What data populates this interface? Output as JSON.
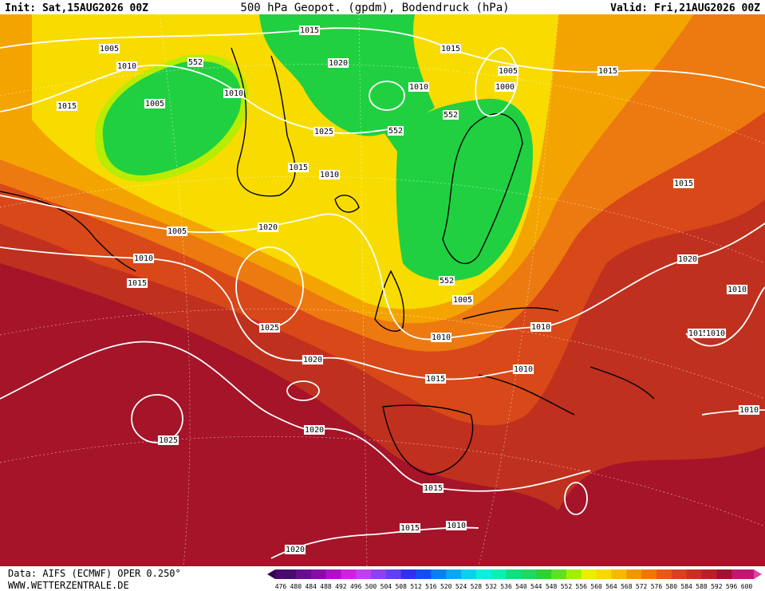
{
  "header": {
    "init": "Init: Sat,15AUG2026 00Z",
    "title": "500 hPa Geopot. (gpdm), Bodendruck (hPa)",
    "valid": "Valid: Fri,21AUG2026 00Z"
  },
  "map": {
    "contour_labels": [
      "1015",
      "1005",
      "1010",
      "552",
      "1020",
      "1015",
      "1005",
      "1015",
      "1010",
      "1010",
      "1000",
      "1015",
      "1005",
      "552",
      "1025",
      "552",
      "1015",
      "1010",
      "1015",
      "1005",
      "1020",
      "1010",
      "1020",
      "1015",
      "552",
      "1005",
      "1010",
      "1025",
      "1010",
      "1015",
      "1010",
      "1010",
      "1020",
      "1010",
      "1015",
      "1010",
      "1025",
      "1020",
      "1015",
      "1015",
      "1010",
      "1020"
    ]
  },
  "colorbar": {
    "labels": [
      "476",
      "480",
      "484",
      "488",
      "492",
      "496",
      "500",
      "504",
      "508",
      "512",
      "516",
      "520",
      "524",
      "528",
      "532",
      "536",
      "540",
      "544",
      "548",
      "552",
      "556",
      "560",
      "564",
      "568",
      "572",
      "576",
      "580",
      "584",
      "588",
      "592",
      "596",
      "600"
    ],
    "colors": [
      "#4b0a6e",
      "#6a0a8e",
      "#8a0aa8",
      "#b010c8",
      "#d020e0",
      "#c040f0",
      "#9040f0",
      "#6040f0",
      "#3030f0",
      "#1050f0",
      "#0a80f0",
      "#0aa8f0",
      "#0ad0f0",
      "#0af0e0",
      "#0af0b0",
      "#10e080",
      "#20d860",
      "#30d030",
      "#60e020",
      "#a0f000",
      "#e8f000",
      "#f8d800",
      "#f8b800",
      "#f09800",
      "#f07800",
      "#e85818",
      "#d84020",
      "#c83020",
      "#b82028",
      "#a01030",
      "#c01870"
    ]
  },
  "footer": {
    "source": "Data: AIFS (ECMWF) OPER 0.250°",
    "site": "WWW.WETTERZENTRALE.DE"
  }
}
